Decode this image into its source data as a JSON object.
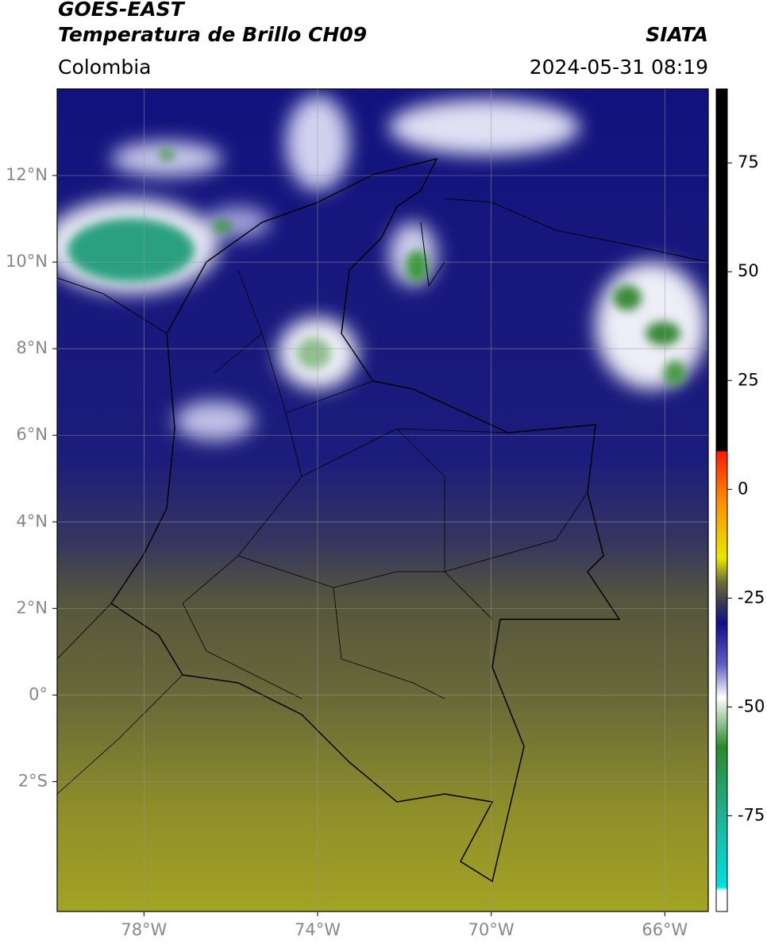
{
  "chart_data": {
    "type": "map",
    "title": "GOES-EAST",
    "subtitle": "Temperatura de Brillo CH09",
    "source": "SIATA",
    "region": "Colombia",
    "datetime": "2024-05-31 08:19",
    "xlim": [
      -80,
      -65
    ],
    "ylim": [
      -5,
      14
    ],
    "xticks": [
      {
        "value": -78,
        "label": "78°W"
      },
      {
        "value": -74,
        "label": "74°W"
      },
      {
        "value": -70,
        "label": "70°W"
      },
      {
        "value": -66,
        "label": "66°W"
      }
    ],
    "yticks": [
      {
        "value": 12,
        "label": "12°N"
      },
      {
        "value": 10,
        "label": "10°N"
      },
      {
        "value": 8,
        "label": "8°N"
      },
      {
        "value": 6,
        "label": "6°N"
      },
      {
        "value": 4,
        "label": "4°N"
      },
      {
        "value": 2,
        "label": "2°N"
      },
      {
        "value": 0,
        "label": "0°"
      },
      {
        "value": -2,
        "label": "2°S"
      }
    ],
    "grid": true,
    "colorbar": {
      "lim": [
        -97,
        92
      ],
      "ticks": [
        75,
        50,
        25,
        0,
        -25,
        -50,
        -75
      ]
    }
  }
}
